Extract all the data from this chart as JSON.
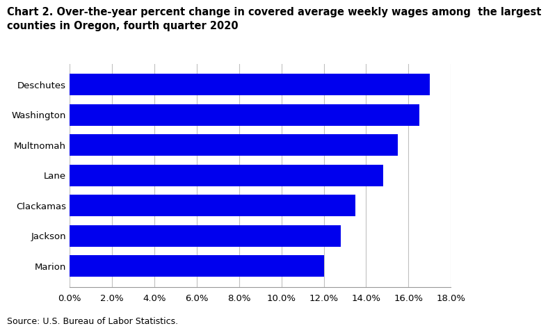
{
  "title_line1": "Chart 2. Over-the-year percent change in covered average weekly wages among  the largest",
  "title_line2": "counties in Oregon, fourth quarter 2020",
  "categories": [
    "Marion",
    "Jackson",
    "Clackamas",
    "Lane",
    "Multnomah",
    "Washington",
    "Deschutes"
  ],
  "values": [
    12.0,
    12.8,
    13.5,
    14.8,
    15.5,
    16.5,
    17.0
  ],
  "bar_color": "#0000ee",
  "xlim": [
    0,
    18.0
  ],
  "xticks": [
    0,
    2.0,
    4.0,
    6.0,
    8.0,
    10.0,
    12.0,
    14.0,
    16.0,
    18.0
  ],
  "source": "Source: U.S. Bureau of Labor Statistics.",
  "background_color": "#ffffff",
  "grid_color": "#c0c0c0",
  "title_fontsize": 10.5,
  "tick_fontsize": 9.5,
  "source_fontsize": 9,
  "bar_height": 0.72
}
